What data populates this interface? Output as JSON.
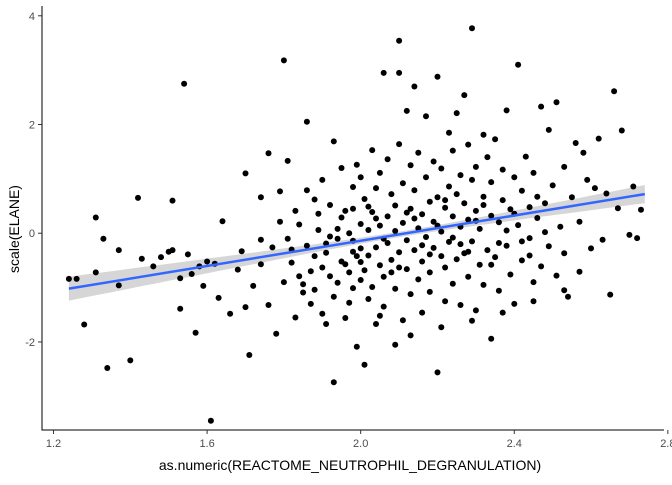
{
  "chart_data": {
    "type": "scatter",
    "title": "",
    "xlabel": "as.numeric(REACTOME_NEUTROPHIL_DEGRANULATION)",
    "ylabel": "scale(ELANE)",
    "xlim": [
      1.17,
      2.79
    ],
    "ylim": [
      -3.62,
      4.18
    ],
    "x_ticks": [
      1.2,
      1.6,
      2.0,
      2.4,
      2.8
    ],
    "x_tick_labels": [
      "1.2",
      "1.6",
      "2.0",
      "2.4",
      "2.8"
    ],
    "y_ticks": [
      -2,
      0,
      2,
      4
    ],
    "y_tick_labels": [
      "-2",
      "0",
      "2",
      "4"
    ],
    "grid": false,
    "legend": "none",
    "colors": {
      "points": "#000000",
      "fit_line": "#3366FF",
      "ribbon": "#999999",
      "axis": "#333333"
    },
    "fit": {
      "method": "lm",
      "x_range": [
        1.24,
        2.74
      ],
      "y_at_start": -1.02,
      "y_at_end": 0.72,
      "ci_half_width_ends": 0.22,
      "ci_half_width_center": 0.05,
      "x_center": 2.1
    },
    "points": [
      [
        1.24,
        -0.84
      ],
      [
        1.26,
        -0.84
      ],
      [
        1.28,
        -1.68
      ],
      [
        1.31,
        0.29
      ],
      [
        1.31,
        -0.72
      ],
      [
        1.33,
        -0.1
      ],
      [
        1.34,
        -2.48
      ],
      [
        1.37,
        -0.96
      ],
      [
        1.37,
        -0.31
      ],
      [
        1.4,
        -2.34
      ],
      [
        1.42,
        0.65
      ],
      [
        1.43,
        -0.47
      ],
      [
        1.46,
        -0.61
      ],
      [
        1.48,
        -0.44
      ],
      [
        1.5,
        -0.34
      ],
      [
        1.51,
        0.6
      ],
      [
        1.51,
        -0.31
      ],
      [
        1.53,
        -0.83
      ],
      [
        1.53,
        -1.39
      ],
      [
        1.54,
        2.75
      ],
      [
        1.55,
        -0.39
      ],
      [
        1.56,
        -0.75
      ],
      [
        1.57,
        -1.83
      ],
      [
        1.58,
        -0.61
      ],
      [
        1.59,
        -0.97
      ],
      [
        1.6,
        -0.52
      ],
      [
        1.61,
        -3.45
      ],
      [
        1.62,
        -0.56
      ],
      [
        1.63,
        -1.19
      ],
      [
        1.64,
        0.22
      ],
      [
        1.66,
        -1.48
      ],
      [
        1.68,
        -0.67
      ],
      [
        1.69,
        -0.33
      ],
      [
        1.7,
        -1.36
      ],
      [
        1.7,
        1.1
      ],
      [
        1.71,
        -2.24
      ],
      [
        1.72,
        -0.97
      ],
      [
        1.74,
        -0.57
      ],
      [
        1.74,
        0.66
      ],
      [
        1.74,
        -0.12
      ],
      [
        1.76,
        1.47
      ],
      [
        1.76,
        -1.32
      ],
      [
        1.77,
        -0.26
      ],
      [
        1.78,
        -1.85
      ],
      [
        1.79,
        0.21
      ],
      [
        1.79,
        0.77
      ],
      [
        1.8,
        3.18
      ],
      [
        1.8,
        -0.9
      ],
      [
        1.81,
        -0.1
      ],
      [
        1.81,
        1.33
      ],
      [
        1.82,
        -0.54
      ],
      [
        1.82,
        -0.3
      ],
      [
        1.83,
        0.41
      ],
      [
        1.83,
        -1.55
      ],
      [
        1.84,
        -0.79
      ],
      [
        1.84,
        0.16
      ],
      [
        1.85,
        -0.94
      ],
      [
        1.85,
        -1.09
      ],
      [
        1.86,
        -0.23
      ],
      [
        1.86,
        2.05
      ],
      [
        1.86,
        0.79
      ],
      [
        1.87,
        -0.7
      ],
      [
        1.87,
        -1.3
      ],
      [
        1.88,
        -1.04
      ],
      [
        1.88,
        -0.42
      ],
      [
        1.89,
        0.36
      ],
      [
        1.89,
        0.06
      ],
      [
        1.9,
        -0.63
      ],
      [
        1.9,
        -1.48
      ],
      [
        1.9,
        0.98
      ],
      [
        1.91,
        -0.36
      ],
      [
        1.91,
        -0.19
      ],
      [
        1.92,
        -0.79
      ],
      [
        1.92,
        0.52
      ],
      [
        1.93,
        -1.17
      ],
      [
        1.93,
        -2.74
      ],
      [
        1.93,
        1.69
      ],
      [
        1.94,
        -0.1
      ],
      [
        1.94,
        -0.91
      ],
      [
        1.95,
        1.2
      ],
      [
        1.95,
        0.29
      ],
      [
        1.95,
        -0.52
      ],
      [
        1.96,
        -1.56
      ],
      [
        1.96,
        -0.57
      ],
      [
        1.97,
        0.0
      ],
      [
        1.97,
        -0.72
      ],
      [
        1.98,
        -0.14
      ],
      [
        1.98,
        -1.01
      ],
      [
        1.98,
        0.85
      ],
      [
        1.98,
        0.45
      ],
      [
        1.99,
        -2.09
      ],
      [
        1.99,
        -0.42
      ],
      [
        1.99,
        1.26
      ],
      [
        2.0,
        -0.86
      ],
      [
        2.0,
        0.17
      ],
      [
        2.0,
        -0.28
      ],
      [
        2.0,
        1.03
      ],
      [
        2.01,
        -2.42
      ],
      [
        2.01,
        -0.68
      ],
      [
        2.01,
        0.63
      ],
      [
        2.02,
        -1.21
      ],
      [
        2.02,
        0.06
      ],
      [
        2.02,
        -0.41
      ],
      [
        2.03,
        1.53
      ],
      [
        2.03,
        -0.99
      ],
      [
        2.03,
        0.39
      ],
      [
        2.04,
        -0.26
      ],
      [
        2.04,
        -1.67
      ],
      [
        2.04,
        0.83
      ],
      [
        2.05,
        -0.59
      ],
      [
        2.05,
        1.11
      ],
      [
        2.05,
        0.14
      ],
      [
        2.06,
        -0.8
      ],
      [
        2.06,
        2.95
      ],
      [
        2.06,
        -1.35
      ],
      [
        2.07,
        0.31
      ],
      [
        2.07,
        -0.18
      ],
      [
        2.07,
        1.36
      ],
      [
        2.08,
        -0.49
      ],
      [
        2.08,
        0.72
      ],
      [
        2.09,
        -1.02
      ],
      [
        2.09,
        0.04
      ],
      [
        2.09,
        0.51
      ],
      [
        2.1,
        3.54
      ],
      [
        2.1,
        2.95
      ],
      [
        2.1,
        -0.35
      ],
      [
        2.1,
        1.64
      ],
      [
        2.11,
        -1.6
      ],
      [
        2.11,
        0.19
      ],
      [
        2.11,
        0.92
      ],
      [
        2.12,
        -0.66
      ],
      [
        2.12,
        2.25
      ],
      [
        2.12,
        -0.13
      ],
      [
        2.13,
        1.25
      ],
      [
        2.13,
        -1.12
      ],
      [
        2.13,
        0.45
      ],
      [
        2.14,
        -0.31
      ],
      [
        2.14,
        0.79
      ],
      [
        2.14,
        2.7
      ],
      [
        2.15,
        -0.85
      ],
      [
        2.15,
        0.09
      ],
      [
        2.15,
        1.48
      ],
      [
        2.16,
        -0.52
      ],
      [
        2.16,
        0.35
      ],
      [
        2.16,
        -1.46
      ],
      [
        2.17,
        1.03
      ],
      [
        2.17,
        -0.07
      ],
      [
        2.17,
        2.15
      ],
      [
        2.18,
        0.58
      ],
      [
        2.18,
        -0.72
      ],
      [
        2.18,
        -1.08
      ],
      [
        2.19,
        0.21
      ],
      [
        2.19,
        1.32
      ],
      [
        2.19,
        -0.27
      ],
      [
        2.2,
        2.88
      ],
      [
        2.2,
        -2.56
      ],
      [
        2.2,
        0.66
      ],
      [
        2.21,
        -0.42
      ],
      [
        2.21,
        1.19
      ],
      [
        2.21,
        0.03
      ],
      [
        2.22,
        -1.25
      ],
      [
        2.22,
        0.47
      ],
      [
        2.22,
        -0.63
      ],
      [
        2.23,
        1.85
      ],
      [
        2.23,
        0.86
      ],
      [
        2.23,
        -0.16
      ],
      [
        2.24,
        -0.93
      ],
      [
        2.24,
        1.52
      ],
      [
        2.24,
        0.31
      ],
      [
        2.25,
        -0.48
      ],
      [
        2.25,
        2.21
      ],
      [
        2.25,
        0.72
      ],
      [
        2.26,
        -1.32
      ],
      [
        2.26,
        0.12
      ],
      [
        2.26,
        1.07
      ],
      [
        2.27,
        -0.37
      ],
      [
        2.27,
        2.54
      ],
      [
        2.27,
        0.55
      ],
      [
        2.28,
        -0.8
      ],
      [
        2.28,
        1.63
      ],
      [
        2.28,
        0.25
      ],
      [
        2.29,
        3.77
      ],
      [
        2.29,
        -0.15
      ],
      [
        2.29,
        0.98
      ],
      [
        2.3,
        -1.42
      ],
      [
        2.3,
        0.41
      ],
      [
        2.3,
        1.22
      ],
      [
        2.31,
        -0.58
      ],
      [
        2.31,
        0.08
      ],
      [
        2.32,
        1.81
      ],
      [
        2.32,
        -0.95
      ],
      [
        2.32,
        0.67
      ],
      [
        2.33,
        -0.31
      ],
      [
        2.33,
        1.4
      ],
      [
        2.34,
        -1.94
      ],
      [
        2.34,
        0.32
      ],
      [
        2.34,
        0.94
      ],
      [
        2.35,
        -0.44
      ],
      [
        2.35,
        1.73
      ],
      [
        2.36,
        0.2
      ],
      [
        2.36,
        -1.06
      ],
      [
        2.37,
        0.61
      ],
      [
        2.37,
        1.17
      ],
      [
        2.38,
        -0.23
      ],
      [
        2.38,
        2.26
      ],
      [
        2.39,
        0.44
      ],
      [
        2.39,
        -0.76
      ],
      [
        2.4,
        1.03
      ],
      [
        2.4,
        -1.3
      ],
      [
        2.41,
        0.15
      ],
      [
        2.41,
        3.1
      ],
      [
        2.42,
        0.78
      ],
      [
        2.42,
        -0.5
      ],
      [
        2.43,
        1.41
      ],
      [
        2.44,
        -0.09
      ],
      [
        2.44,
        0.48
      ],
      [
        2.45,
        -0.9
      ],
      [
        2.45,
        1.11
      ],
      [
        2.46,
        0.28
      ],
      [
        2.47,
        -0.61
      ],
      [
        2.47,
        2.33
      ],
      [
        2.48,
        0.55
      ],
      [
        2.49,
        -0.24
      ],
      [
        2.49,
        1.9
      ],
      [
        2.5,
        0.88
      ],
      [
        2.51,
        -0.78
      ],
      [
        2.51,
        2.41
      ],
      [
        2.52,
        0.12
      ],
      [
        2.53,
        -0.37
      ],
      [
        2.53,
        1.22
      ],
      [
        2.54,
        -1.17
      ],
      [
        2.55,
        0.66
      ],
      [
        2.56,
        1.66
      ],
      [
        2.57,
        -0.71
      ],
      [
        2.57,
        0.21
      ],
      [
        2.58,
        1.48
      ],
      [
        2.59,
        0.98
      ],
      [
        2.6,
        -0.28
      ],
      [
        2.61,
        0.83
      ],
      [
        2.62,
        1.74
      ],
      [
        2.63,
        -0.12
      ],
      [
        2.64,
        0.73
      ],
      [
        2.65,
        -1.13
      ],
      [
        2.66,
        2.61
      ],
      [
        2.67,
        0.46
      ],
      [
        2.68,
        1.89
      ],
      [
        2.7,
        -0.03
      ],
      [
        2.71,
        0.86
      ],
      [
        2.72,
        -0.09
      ],
      [
        2.73,
        0.43
      ],
      [
        1.88,
        0.62
      ],
      [
        1.92,
        -0.06
      ],
      [
        1.96,
        0.41
      ],
      [
        2.0,
        -0.53
      ],
      [
        2.04,
        0.27
      ],
      [
        2.08,
        -0.72
      ],
      [
        2.12,
        0.38
      ],
      [
        2.16,
        -0.22
      ],
      [
        2.2,
        0.14
      ],
      [
        2.24,
        -0.08
      ],
      [
        2.28,
        -0.34
      ],
      [
        2.32,
        0.52
      ],
      [
        2.36,
        -0.18
      ],
      [
        2.4,
        0.36
      ],
      [
        2.44,
        -0.41
      ],
      [
        2.48,
        0.02
      ],
      [
        1.94,
        0.08
      ],
      [
        1.98,
        -0.34
      ],
      [
        2.02,
        0.49
      ],
      [
        2.06,
        -0.1
      ],
      [
        2.1,
        -0.63
      ],
      [
        2.14,
        0.27
      ],
      [
        2.18,
        -0.39
      ],
      [
        2.22,
        0.61
      ],
      [
        2.26,
        -0.2
      ],
      [
        2.3,
        0.23
      ],
      [
        2.34,
        -0.58
      ],
      [
        2.38,
        0.05
      ],
      [
        2.42,
        -0.15
      ],
      [
        2.46,
        0.67
      ],
      [
        1.97,
        -1.28
      ],
      [
        2.05,
        -1.52
      ],
      [
        2.13,
        -1.88
      ],
      [
        2.21,
        -1.73
      ],
      [
        2.29,
        -1.61
      ],
      [
        2.37,
        -1.46
      ],
      [
        2.45,
        -1.25
      ],
      [
        2.53,
        -1.05
      ],
      [
        1.91,
        -1.67
      ],
      [
        2.09,
        -2.05
      ]
    ]
  }
}
